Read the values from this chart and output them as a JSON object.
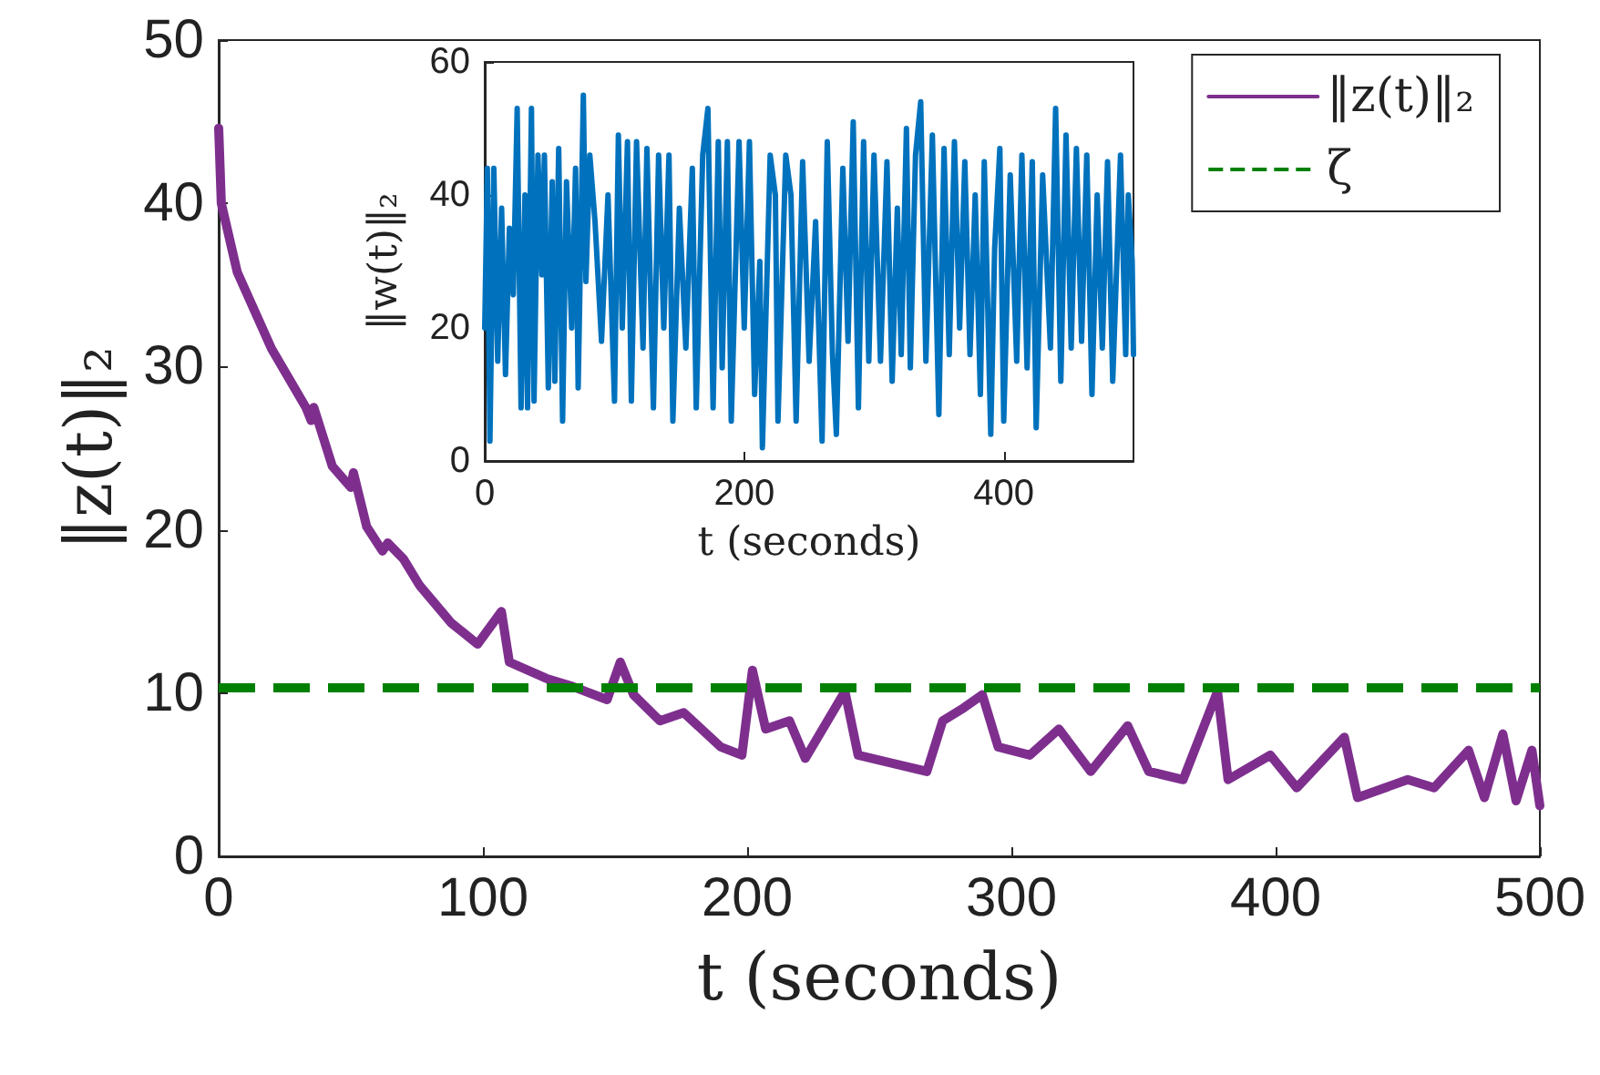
{
  "chart_data": [
    {
      "type": "line",
      "xlabel": "t (seconds)",
      "ylabel": "‖z(t)‖₂",
      "xlim": [
        0,
        500
      ],
      "xticks": [
        0,
        100,
        200,
        300,
        400,
        500
      ],
      "ylim": [
        0,
        50
      ],
      "yticks": [
        0,
        10,
        20,
        30,
        40,
        50
      ],
      "grid": false,
      "legend": "top right",
      "marker": "none",
      "line_style": "solid",
      "series": [
        {
          "name": "‖z(t)‖₂",
          "color": "#7e2f8e",
          "x": [
            0,
            1,
            7,
            20,
            33,
            35,
            36,
            43,
            50,
            51,
            56,
            62,
            64,
            70,
            76,
            88,
            98,
            107,
            110,
            124,
            134,
            147,
            152,
            157,
            167,
            176,
            190,
            198,
            202,
            207,
            216,
            222,
            237,
            242,
            255,
            268,
            274,
            282,
            289,
            295,
            307,
            318,
            330,
            344,
            352,
            365,
            378,
            382,
            398,
            408,
            426,
            431,
            450,
            460,
            473,
            479,
            486,
            491,
            497,
            500
          ],
          "values": [
            44.6,
            40,
            35.8,
            31.1,
            27.5,
            26.7,
            27.5,
            23.9,
            22.6,
            23.5,
            20.2,
            18.7,
            19.2,
            18.2,
            16.6,
            14.3,
            13,
            15,
            11.9,
            10.9,
            10.4,
            9.6,
            11.9,
            9.9,
            8.3,
            8.8,
            6.7,
            6.2,
            11.4,
            7.8,
            8.3,
            6,
            10.1,
            6.2,
            5.7,
            5.2,
            8.3,
            9.1,
            9.9,
            6.7,
            6.2,
            7.8,
            5.2,
            8,
            5.2,
            4.7,
            10.1,
            4.7,
            6.2,
            4.2,
            7.3,
            3.6,
            4.7,
            4.2,
            6.5,
            3.6,
            7.5,
            3.4,
            6.5,
            3.1
          ]
        }
      ],
      "ref_lines": [
        {
          "axis": "y",
          "value": 10.4,
          "label": "ζ",
          "color": "#008000",
          "line_style": "dashed"
        }
      ]
    },
    {
      "type": "line",
      "xlabel": "t (seconds)",
      "ylabel": "‖w(t)‖₂",
      "xlim": [
        0,
        500
      ],
      "xticks": [
        0,
        200,
        400
      ],
      "ylim": [
        0,
        60
      ],
      "yticks": [
        0,
        20,
        40,
        60
      ],
      "grid": false,
      "marker": "none",
      "line_style": "solid",
      "series": [
        {
          "color": "#0072bd",
          "x": [
            0,
            2,
            4,
            7,
            10,
            13,
            16,
            19,
            22,
            25,
            28,
            31,
            33,
            36,
            38,
            41,
            44,
            46,
            49,
            52,
            54,
            57,
            60,
            63,
            67,
            70,
            72,
            76,
            78,
            81,
            85,
            90,
            95,
            100,
            103,
            106,
            110,
            113,
            117,
            122,
            125,
            130,
            134,
            138,
            142,
            145,
            150,
            155,
            160,
            163,
            168,
            172,
            176,
            180,
            183,
            187,
            190,
            196,
            200,
            204,
            208,
            212,
            214,
            220,
            224,
            226,
            232,
            236,
            240,
            245,
            250,
            255,
            260,
            264,
            268,
            271,
            276,
            280,
            284,
            288,
            292,
            296,
            300,
            305,
            310,
            314,
            318,
            321,
            325,
            328,
            332,
            336,
            340,
            345,
            350,
            354,
            358,
            362,
            366,
            370,
            374,
            378,
            382,
            385,
            390,
            393,
            397,
            400,
            405,
            410,
            414,
            418,
            422,
            425,
            430,
            436,
            440,
            444,
            448,
            452,
            456,
            460,
            464,
            468,
            472,
            476,
            480,
            484,
            490,
            494,
            496,
            499,
            500
          ],
          "values": [
            20,
            44,
            3,
            44,
            15,
            38,
            13,
            35,
            25,
            53,
            8,
            40,
            8,
            53,
            9,
            46,
            28,
            46,
            11,
            42,
            12,
            47,
            6,
            42,
            20,
            44,
            11,
            55,
            27,
            46,
            36,
            18,
            40,
            9,
            49,
            20,
            48,
            9,
            48,
            17,
            47,
            8,
            46,
            20,
            46,
            6,
            38,
            17,
            44,
            8,
            46,
            53,
            8,
            48,
            14,
            48,
            6,
            48,
            20,
            48,
            10,
            30,
            2,
            46,
            40,
            6,
            46,
            40,
            6,
            45,
            15,
            36,
            3,
            48,
            16,
            4,
            44,
            18,
            51,
            8,
            48,
            15,
            46,
            15,
            45,
            12,
            38,
            16,
            50,
            14,
            46,
            54,
            15,
            49,
            7,
            47,
            16,
            48,
            20,
            45,
            16,
            40,
            10,
            45,
            4,
            32,
            47,
            6,
            43,
            15,
            46,
            14,
            45,
            5,
            43,
            17,
            53,
            12,
            49,
            17,
            47,
            18,
            46,
            10,
            40,
            17,
            45,
            12,
            46,
            16,
            40,
            30,
            16
          ]
        }
      ]
    }
  ]
}
